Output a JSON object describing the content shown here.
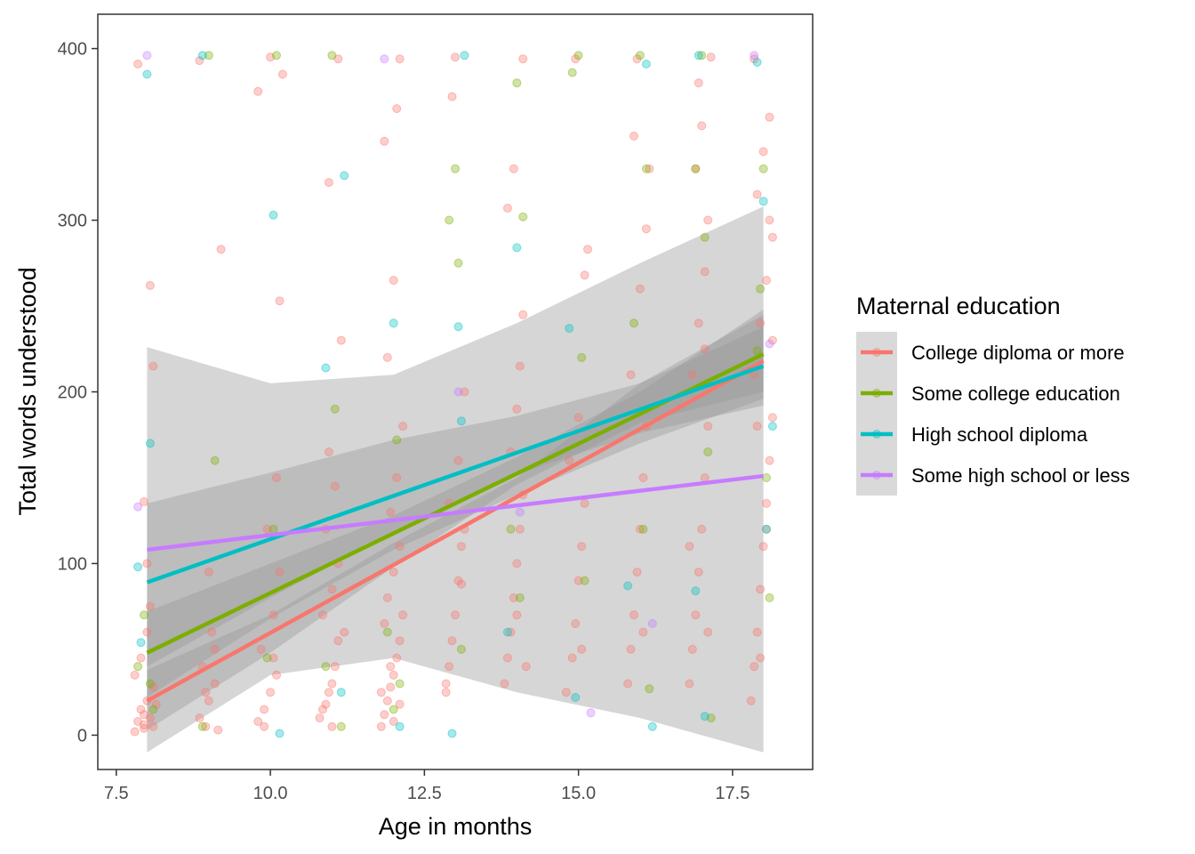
{
  "chart_data": {
    "type": "scatter",
    "xlabel": "Age in months",
    "ylabel": "Total words understood",
    "xlim": [
      7.2,
      18.8
    ],
    "ylim": [
      -20,
      420
    ],
    "x_ticks": [
      7.5,
      10.0,
      12.5,
      15.0,
      17.5
    ],
    "x_tick_labels": [
      "7.5",
      "10.0",
      "12.5",
      "15.0",
      "17.5"
    ],
    "y_ticks": [
      0,
      100,
      200,
      300,
      400
    ],
    "y_tick_labels": [
      "0",
      "100",
      "200",
      "300",
      "400"
    ],
    "grid": false,
    "legend": {
      "title": "Maternal education",
      "position": "right"
    },
    "series": [
      {
        "name": "College diploma or more",
        "color": "#F8766D",
        "fit": {
          "x": [
            8,
            18
          ],
          "y": [
            20,
            218
          ]
        },
        "band": {
          "x": [
            8,
            10,
            12,
            14,
            16,
            18
          ],
          "lower": [
            3,
            48,
            98,
            146,
            182,
            200
          ],
          "upper": [
            38,
            70,
            112,
            150,
            205,
            238
          ]
        },
        "points": [
          [
            7.8,
            2
          ],
          [
            7.85,
            8
          ],
          [
            7.9,
            15
          ],
          [
            7.95,
            4
          ],
          [
            8.0,
            20
          ],
          [
            8.05,
            10
          ],
          [
            8.1,
            28
          ],
          [
            7.8,
            35
          ],
          [
            7.9,
            45
          ],
          [
            8.0,
            60
          ],
          [
            8.05,
            75
          ],
          [
            8.1,
            5
          ],
          [
            7.95,
            12
          ],
          [
            8.1,
            215
          ],
          [
            8.05,
            262
          ],
          [
            7.95,
            136
          ],
          [
            7.85,
            391
          ],
          [
            7.95,
            6
          ],
          [
            8.15,
            18
          ],
          [
            8.0,
            100
          ],
          [
            8.85,
            10
          ],
          [
            8.95,
            5
          ],
          [
            9.0,
            20
          ],
          [
            9.1,
            30
          ],
          [
            8.9,
            40
          ],
          [
            9.05,
            60
          ],
          [
            9.15,
            3
          ],
          [
            9.0,
            95
          ],
          [
            9.2,
            283
          ],
          [
            8.85,
            393
          ],
          [
            9.1,
            50
          ],
          [
            8.95,
            25
          ],
          [
            9.8,
            8
          ],
          [
            9.9,
            15
          ],
          [
            10.0,
            25
          ],
          [
            10.1,
            35
          ],
          [
            9.85,
            50
          ],
          [
            10.05,
            70
          ],
          [
            10.15,
            95
          ],
          [
            9.95,
            120
          ],
          [
            10.1,
            150
          ],
          [
            10.15,
            253
          ],
          [
            9.8,
            375
          ],
          [
            10.0,
            395
          ],
          [
            10.2,
            385
          ],
          [
            9.9,
            5
          ],
          [
            10.05,
            45
          ],
          [
            10.8,
            10
          ],
          [
            10.9,
            18
          ],
          [
            10.95,
            25
          ],
          [
            11.0,
            30
          ],
          [
            11.05,
            40
          ],
          [
            11.1,
            55
          ],
          [
            10.85,
            70
          ],
          [
            11.0,
            85
          ],
          [
            11.1,
            100
          ],
          [
            10.9,
            120
          ],
          [
            11.05,
            145
          ],
          [
            11.15,
            230
          ],
          [
            10.95,
            322
          ],
          [
            11.1,
            394
          ],
          [
            10.85,
            15
          ],
          [
            11.0,
            5
          ],
          [
            11.2,
            60
          ],
          [
            10.95,
            165
          ],
          [
            11.8,
            5
          ],
          [
            11.85,
            12
          ],
          [
            11.9,
            20
          ],
          [
            11.95,
            28
          ],
          [
            12.0,
            35
          ],
          [
            12.05,
            45
          ],
          [
            12.1,
            55
          ],
          [
            11.85,
            65
          ],
          [
            11.9,
            80
          ],
          [
            12.0,
            95
          ],
          [
            12.1,
            110
          ],
          [
            11.95,
            130
          ],
          [
            12.05,
            150
          ],
          [
            12.15,
            180
          ],
          [
            11.9,
            220
          ],
          [
            12.0,
            265
          ],
          [
            11.85,
            346
          ],
          [
            12.05,
            365
          ],
          [
            12.1,
            394
          ],
          [
            12.0,
            8
          ],
          [
            11.95,
            40
          ],
          [
            12.15,
            70
          ],
          [
            11.8,
            25
          ],
          [
            12.1,
            18
          ],
          [
            12.85,
            25
          ],
          [
            12.9,
            40
          ],
          [
            12.95,
            55
          ],
          [
            13.0,
            70
          ],
          [
            13.05,
            90
          ],
          [
            13.1,
            110
          ],
          [
            12.9,
            135
          ],
          [
            13.05,
            160
          ],
          [
            13.15,
            200
          ],
          [
            12.95,
            372
          ],
          [
            13.0,
            395
          ],
          [
            13.1,
            88
          ],
          [
            12.85,
            30
          ],
          [
            13.15,
            120
          ],
          [
            13.8,
            30
          ],
          [
            13.85,
            45
          ],
          [
            13.9,
            60
          ],
          [
            13.95,
            80
          ],
          [
            14.0,
            100
          ],
          [
            14.05,
            120
          ],
          [
            14.1,
            140
          ],
          [
            13.9,
            165
          ],
          [
            14.0,
            190
          ],
          [
            14.05,
            215
          ],
          [
            14.1,
            245
          ],
          [
            13.85,
            307
          ],
          [
            13.95,
            330
          ],
          [
            14.1,
            394
          ],
          [
            14.15,
            40
          ],
          [
            14.0,
            70
          ],
          [
            14.8,
            25
          ],
          [
            14.9,
            45
          ],
          [
            14.95,
            65
          ],
          [
            15.0,
            90
          ],
          [
            15.05,
            110
          ],
          [
            15.1,
            135
          ],
          [
            14.85,
            160
          ],
          [
            15.0,
            185
          ],
          [
            15.1,
            268
          ],
          [
            15.15,
            283
          ],
          [
            14.95,
            394
          ],
          [
            15.05,
            50
          ],
          [
            15.8,
            30
          ],
          [
            15.85,
            50
          ],
          [
            15.9,
            70
          ],
          [
            15.95,
            95
          ],
          [
            16.0,
            120
          ],
          [
            16.05,
            150
          ],
          [
            16.1,
            180
          ],
          [
            15.85,
            210
          ],
          [
            16.0,
            260
          ],
          [
            16.1,
            295
          ],
          [
            15.9,
            349
          ],
          [
            16.15,
            330
          ],
          [
            15.95,
            394
          ],
          [
            16.05,
            60
          ],
          [
            16.8,
            30
          ],
          [
            16.85,
            50
          ],
          [
            16.9,
            70
          ],
          [
            16.95,
            95
          ],
          [
            17.0,
            120
          ],
          [
            17.05,
            150
          ],
          [
            17.1,
            180
          ],
          [
            16.85,
            210
          ],
          [
            16.95,
            240
          ],
          [
            17.05,
            270
          ],
          [
            17.1,
            300
          ],
          [
            16.9,
            330
          ],
          [
            17.0,
            355
          ],
          [
            17.15,
            395
          ],
          [
            16.95,
            380
          ],
          [
            17.1,
            60
          ],
          [
            16.8,
            110
          ],
          [
            17.05,
            225
          ],
          [
            17.8,
            20
          ],
          [
            17.85,
            40
          ],
          [
            17.9,
            60
          ],
          [
            17.95,
            85
          ],
          [
            18.0,
            110
          ],
          [
            18.05,
            135
          ],
          [
            18.1,
            160
          ],
          [
            18.15,
            185
          ],
          [
            17.85,
            210
          ],
          [
            17.95,
            240
          ],
          [
            18.05,
            265
          ],
          [
            18.15,
            290
          ],
          [
            17.9,
            315
          ],
          [
            18.0,
            340
          ],
          [
            18.1,
            360
          ],
          [
            17.85,
            394
          ],
          [
            18.15,
            230
          ],
          [
            18.05,
            120
          ],
          [
            17.95,
            45
          ],
          [
            18.1,
            300
          ],
          [
            17.9,
            180
          ]
        ]
      },
      {
        "name": "Some college education",
        "color": "#7CAE00",
        "fit": {
          "x": [
            8,
            18
          ],
          "y": [
            48,
            222
          ]
        },
        "band": {
          "x": [
            8,
            10,
            12,
            14,
            16,
            18
          ],
          "lower": [
            22,
            68,
            108,
            140,
            170,
            196
          ],
          "upper": [
            72,
            100,
            128,
            162,
            200,
            248
          ]
        },
        "points": [
          [
            7.85,
            40
          ],
          [
            7.95,
            70
          ],
          [
            8.05,
            30
          ],
          [
            8.1,
            15
          ],
          [
            9.0,
            396
          ],
          [
            9.1,
            160
          ],
          [
            8.9,
            5
          ],
          [
            10.1,
            396
          ],
          [
            10.05,
            120
          ],
          [
            9.95,
            45
          ],
          [
            11.0,
            396
          ],
          [
            11.05,
            190
          ],
          [
            10.9,
            40
          ],
          [
            11.15,
            5
          ],
          [
            12.0,
            15
          ],
          [
            11.9,
            60
          ],
          [
            12.05,
            172
          ],
          [
            12.1,
            30
          ],
          [
            13.0,
            330
          ],
          [
            12.9,
            300
          ],
          [
            13.05,
            275
          ],
          [
            13.1,
            50
          ],
          [
            14.0,
            380
          ],
          [
            14.1,
            302
          ],
          [
            13.9,
            120
          ],
          [
            14.05,
            80
          ],
          [
            15.0,
            396
          ],
          [
            14.9,
            386
          ],
          [
            15.05,
            220
          ],
          [
            15.1,
            90
          ],
          [
            16.0,
            396
          ],
          [
            16.1,
            330
          ],
          [
            15.9,
            240
          ],
          [
            16.05,
            120
          ],
          [
            16.15,
            27
          ],
          [
            17.0,
            396
          ],
          [
            16.9,
            330
          ],
          [
            17.05,
            290
          ],
          [
            17.1,
            165
          ],
          [
            17.15,
            10
          ],
          [
            18.0,
            330
          ],
          [
            17.95,
            260
          ],
          [
            18.05,
            150
          ],
          [
            18.1,
            80
          ],
          [
            17.9,
            224
          ]
        ]
      },
      {
        "name": "High school diploma",
        "color": "#00BFC4",
        "fit": {
          "x": [
            8,
            18
          ],
          "y": [
            89,
            215
          ]
        },
        "band": {
          "x": [
            8,
            10,
            12,
            14,
            16,
            18
          ],
          "lower": [
            40,
            80,
            118,
            152,
            176,
            192
          ],
          "upper": [
            135,
            153,
            172,
            186,
            205,
            245
          ]
        },
        "points": [
          [
            7.85,
            98
          ],
          [
            7.9,
            54
          ],
          [
            8.05,
            170
          ],
          [
            8.0,
            385
          ],
          [
            8.9,
            396
          ],
          [
            10.05,
            303
          ],
          [
            10.15,
            1
          ],
          [
            10.9,
            214
          ],
          [
            11.2,
            326
          ],
          [
            11.15,
            25
          ],
          [
            12.0,
            240
          ],
          [
            12.1,
            5
          ],
          [
            12.95,
            1
          ],
          [
            13.05,
            238
          ],
          [
            13.1,
            183
          ],
          [
            13.15,
            396
          ],
          [
            14.0,
            284
          ],
          [
            13.85,
            60
          ],
          [
            14.85,
            237
          ],
          [
            14.95,
            22
          ],
          [
            15.8,
            87
          ],
          [
            16.2,
            5
          ],
          [
            16.1,
            391
          ],
          [
            16.9,
            84
          ],
          [
            17.05,
            11
          ],
          [
            16.95,
            396
          ],
          [
            17.9,
            392
          ],
          [
            18.0,
            311
          ],
          [
            18.15,
            180
          ],
          [
            18.05,
            120
          ]
        ]
      },
      {
        "name": "Some high school or less",
        "color": "#C77CFF",
        "fit": {
          "x": [
            8,
            18
          ],
          "y": [
            108,
            151
          ]
        },
        "band": {
          "x": [
            8,
            10,
            12,
            14,
            16,
            18
          ],
          "lower": [
            -10,
            35,
            45,
            25,
            10,
            -10
          ],
          "upper": [
            226,
            205,
            210,
            240,
            275,
            308
          ]
        },
        "points": [
          [
            7.85,
            133
          ],
          [
            8.0,
            396
          ],
          [
            11.85,
            394
          ],
          [
            13.05,
            200
          ],
          [
            14.05,
            130
          ],
          [
            15.2,
            13
          ],
          [
            16.2,
            65
          ],
          [
            17.85,
            396
          ],
          [
            18.1,
            228
          ]
        ]
      }
    ]
  }
}
